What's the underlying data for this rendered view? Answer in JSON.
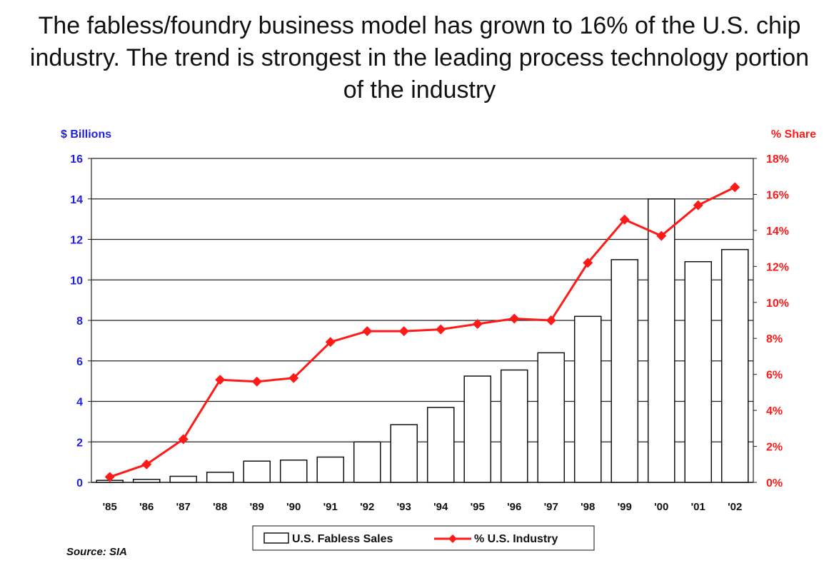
{
  "title": "The fabless/foundry business model has grown to 16% of the U.S. chip industry.  The trend is strongest in the leading process technology portion of the industry",
  "source": "Source: SIA",
  "colors": {
    "left_axis": "#1f1fe0",
    "right_axis": "#ff1a1a",
    "line": "#ff1a1a",
    "bar_fill": "#ffffff",
    "bar_stroke": "#111111",
    "grid": "#222222"
  },
  "chart_data": {
    "type": "bar",
    "categories": [
      "'85",
      "'86",
      "'87",
      "'88",
      "'89",
      "'90",
      "'91",
      "'92",
      "'93",
      "'94",
      "'95",
      "'96",
      "'97",
      "'98",
      "'99",
      "'00",
      "'01",
      "'02"
    ],
    "y_left": {
      "label": "$ Billions",
      "ylim": [
        0,
        16
      ],
      "ticks": [
        "0",
        "2",
        "4",
        "6",
        "8",
        "10",
        "12",
        "14",
        "16"
      ]
    },
    "y_right": {
      "label": "% Share",
      "ylim": [
        0,
        18
      ],
      "ticks": [
        "0%",
        "2%",
        "4%",
        "6%",
        "8%",
        "10%",
        "12%",
        "14%",
        "16%",
        "18%"
      ]
    },
    "grid": true,
    "legend_position": "bottom",
    "series": [
      {
        "name": "U.S. Fabless Sales",
        "type": "bar",
        "axis": "left",
        "values": [
          0.1,
          0.15,
          0.3,
          0.5,
          1.05,
          1.1,
          1.25,
          2.0,
          2.85,
          3.7,
          5.25,
          5.55,
          6.4,
          8.2,
          11.0,
          14.0,
          10.9,
          11.5
        ]
      },
      {
        "name": "% U.S. Industry",
        "type": "line",
        "axis": "right",
        "marker": "diamond",
        "values": [
          0.3,
          1.0,
          2.4,
          5.7,
          5.6,
          5.8,
          7.8,
          8.4,
          8.4,
          8.5,
          8.8,
          9.1,
          9.0,
          12.2,
          14.6,
          13.7,
          15.4,
          16.4
        ]
      }
    ]
  }
}
